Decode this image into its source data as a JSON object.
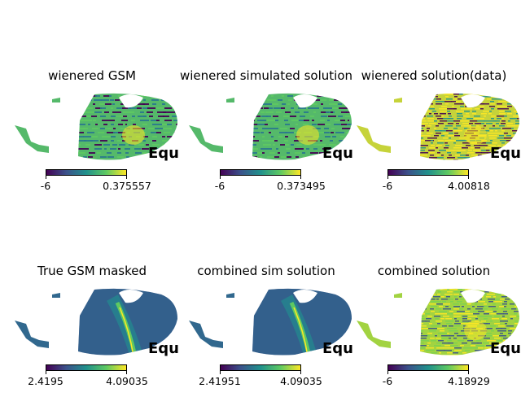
{
  "chart_data": [
    {
      "type": "heatmap",
      "title": "wienered GSM",
      "projection_label": "Equ",
      "colorbar": {
        "min": "-6",
        "max": "0.375557",
        "colormap": "viridis"
      },
      "pattern": "striped"
    },
    {
      "type": "heatmap",
      "title": "wienered simulated solution",
      "projection_label": "Equ",
      "colorbar": {
        "min": "-6",
        "max": "0.373495",
        "colormap": "viridis"
      },
      "pattern": "striped"
    },
    {
      "type": "heatmap",
      "title": "wienered solution(data)",
      "projection_label": "Equ",
      "colorbar": {
        "min": "-6",
        "max": "4.00818",
        "colormap": "viridis"
      },
      "pattern": "noisy"
    },
    {
      "type": "heatmap",
      "title": "True GSM masked",
      "projection_label": "Equ",
      "colorbar": {
        "min": "2.4195",
        "max": "4.09035",
        "colormap": "viridis"
      },
      "pattern": "smooth"
    },
    {
      "type": "heatmap",
      "title": "combined sim solution",
      "projection_label": "Equ",
      "colorbar": {
        "min": "2.41951",
        "max": "4.09035",
        "colormap": "viridis"
      },
      "pattern": "smooth"
    },
    {
      "type": "heatmap",
      "title": "combined solution",
      "projection_label": "Equ",
      "colorbar": {
        "min": "-6",
        "max": "4.18929",
        "colormap": "viridis"
      },
      "pattern": "noisy-bright"
    }
  ]
}
